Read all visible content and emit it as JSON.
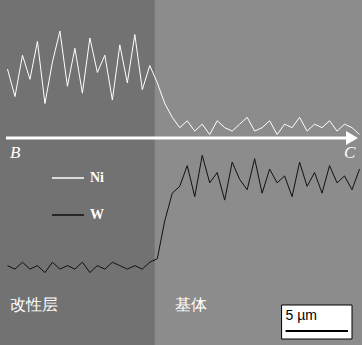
{
  "chart_data": {
    "type": "line",
    "tick_labels": false,
    "grid": false,
    "xlim": [
      0,
      29
    ],
    "ylim": [
      0,
      100
    ],
    "x": [
      0.6,
      1.2,
      1.8,
      2.4,
      3.0,
      3.6,
      4.2,
      4.8,
      5.4,
      6.0,
      6.6,
      7.2,
      7.8,
      8.4,
      9.0,
      9.6,
      10.2,
      10.8,
      11.4,
      12.0,
      12.6,
      13.2,
      13.8,
      14.4,
      15.0,
      15.6,
      16.2,
      16.8,
      17.4,
      18.0,
      18.6,
      19.2,
      19.8,
      20.4,
      21.0,
      21.6,
      22.2,
      22.8,
      23.4,
      24.0,
      24.6,
      25.2,
      25.8,
      26.4,
      27.0,
      27.6,
      28.2,
      28.8
    ],
    "series": [
      {
        "name": "Ni",
        "color": "#ffffff",
        "values": [
          80,
          72,
          84,
          77,
          88,
          70,
          82,
          91,
          75,
          86,
          73,
          89,
          79,
          84,
          71,
          87,
          76,
          90,
          74,
          81,
          76,
          70,
          66,
          63,
          65,
          62,
          64,
          61,
          65,
          63,
          62,
          64,
          66,
          62,
          63,
          65,
          61,
          64,
          63,
          66,
          62,
          64,
          63,
          65,
          62,
          64,
          63,
          61
        ]
      },
      {
        "name": "W",
        "color": "#111111",
        "values": [
          23,
          22,
          24,
          22,
          23,
          21,
          24,
          22,
          23,
          22,
          24,
          21,
          23,
          22,
          24,
          23,
          22,
          23,
          22,
          24,
          25,
          36,
          44,
          46,
          52,
          43,
          55,
          47,
          50,
          42,
          53,
          48,
          45,
          54,
          44,
          51,
          47,
          49,
          43,
          53,
          46,
          50,
          44,
          52,
          47,
          49,
          45,
          51
        ]
      }
    ],
    "regions": [
      {
        "label": "改性层",
        "xlim": [
          0,
          12.4
        ],
        "color": "#727272"
      },
      {
        "label": "基体",
        "xlim": [
          12.4,
          29
        ],
        "color": "#8c8c8c"
      }
    ],
    "arrow": {
      "from": "B",
      "to": "C",
      "y": 60
    },
    "scale_bar": {
      "label": "5 µm",
      "length": 5
    }
  }
}
